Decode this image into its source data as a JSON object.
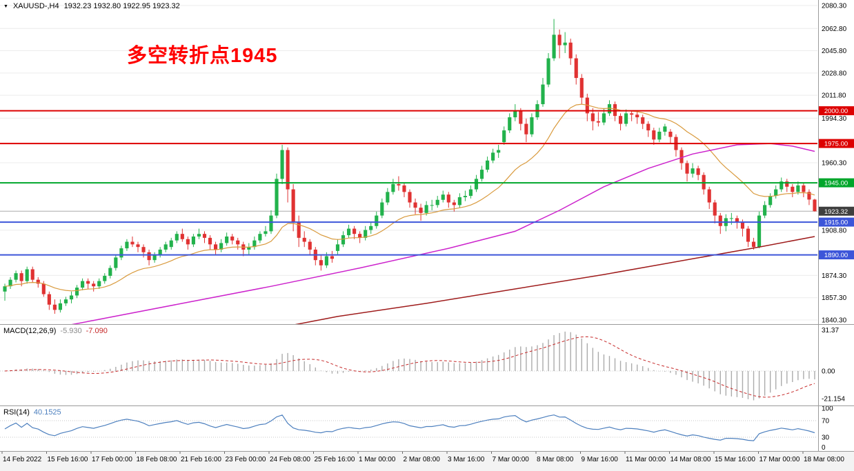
{
  "header": {
    "collapse_icon": "▼",
    "symbol": "XAUUSD-,H4",
    "ohlc": "1932.23 1932.80 1922.95 1923.32"
  },
  "annotation": {
    "text": "多空转折点1945",
    "color": "#ff0000"
  },
  "chart_data": {
    "type": "candlestick",
    "symbol": "XAUUSD-",
    "timeframe": "H4",
    "x_labels": [
      "14 Feb 2022",
      "15 Feb 16:00",
      "17 Feb 00:00",
      "18 Feb 08:00",
      "21 Feb 16:00",
      "23 Feb 00:00",
      "24 Feb 08:00",
      "25 Feb 16:00",
      "1 Mar 00:00",
      "2 Mar 08:00",
      "3 Mar 16:00",
      "7 Mar 00:00",
      "8 Mar 08:00",
      "9 Mar 16:00",
      "11 Mar 00:00",
      "14 Mar 08:00",
      "15 Mar 16:00",
      "17 Mar 00:00",
      "18 Mar 08:00"
    ],
    "main": {
      "price_range": [
        1840.3,
        2080.3
      ],
      "up_color": "#22b24c",
      "down_color": "#e03232",
      "price_ticks": [
        {
          "value": 2080.3,
          "label": "2080.30"
        },
        {
          "value": 2062.8,
          "label": "2062.80"
        },
        {
          "value": 2045.8,
          "label": "2045.80"
        },
        {
          "value": 2028.8,
          "label": "2028.80"
        },
        {
          "value": 2011.8,
          "label": "2011.80"
        },
        {
          "value": 1994.3,
          "label": "1994.30"
        },
        {
          "value": 1960.3,
          "label": "1960.30"
        },
        {
          "value": 1908.8,
          "label": "1908.80"
        },
        {
          "value": 1874.3,
          "label": "1874.30"
        },
        {
          "value": 1857.3,
          "label": "1857.30"
        },
        {
          "value": 1840.3,
          "label": "1840.30"
        }
      ],
      "levels": [
        {
          "price": 2000.0,
          "label": "2000.00",
          "color": "#dd0000"
        },
        {
          "price": 1975.0,
          "label": "1975.00",
          "color": "#dd0000"
        },
        {
          "price": 1945.0,
          "label": "1945.00",
          "color": "#00a62b"
        },
        {
          "price": 1915.0,
          "label": "1915.00",
          "color": "#3c55d9"
        },
        {
          "price": 1890.0,
          "label": "1890.00",
          "color": "#3c55d9"
        }
      ],
      "current_price": {
        "price": 1923.32,
        "label": "1923.32",
        "badge_color": "#3f3f3f",
        "line_color": "#aaaaaa"
      },
      "overlays": [
        {
          "name": "ma-fast-orange",
          "color": "#d99a3d",
          "type": "ema",
          "period": 20,
          "width": 1.2
        },
        {
          "name": "ma-mid-magenta",
          "color": "#cc22cc",
          "width": 1.5,
          "points": [
            [
              0,
              1827
            ],
            [
              16,
              1840
            ],
            [
              32,
              1853
            ],
            [
              48,
              1866
            ],
            [
              64,
              1880
            ],
            [
              80,
              1895
            ],
            [
              92,
              1908
            ],
            [
              100,
              1924
            ],
            [
              108,
              1942
            ],
            [
              116,
              1956
            ],
            [
              124,
              1967
            ],
            [
              132,
              1974
            ],
            [
              138,
              1975
            ],
            [
              142,
              1973
            ],
            [
              146,
              1969
            ]
          ]
        },
        {
          "name": "ma-slow-darkred",
          "color": "#9e1a1a",
          "width": 1.5,
          "points": [
            [
              44,
              1830
            ],
            [
              60,
              1843
            ],
            [
              76,
              1853
            ],
            [
              92,
              1864
            ],
            [
              108,
              1875
            ],
            [
              124,
              1887
            ],
            [
              136,
              1896
            ],
            [
              146,
              1904
            ]
          ]
        }
      ],
      "candles": [
        [
          1862,
          1868,
          1855,
          1866
        ],
        [
          1866,
          1873,
          1864,
          1871
        ],
        [
          1871,
          1878,
          1869,
          1876
        ],
        [
          1876,
          1878,
          1866,
          1870
        ],
        [
          1870,
          1881,
          1868,
          1879
        ],
        [
          1879,
          1881,
          1869,
          1871
        ],
        [
          1871,
          1873,
          1865,
          1868
        ],
        [
          1868,
          1870,
          1858,
          1860
        ],
        [
          1860,
          1862,
          1848,
          1852
        ],
        [
          1852,
          1856,
          1845,
          1848
        ],
        [
          1848,
          1856,
          1846,
          1853
        ],
        [
          1853,
          1858,
          1851,
          1856
        ],
        [
          1856,
          1862,
          1853,
          1859
        ],
        [
          1859,
          1867,
          1857,
          1865
        ],
        [
          1865,
          1872,
          1863,
          1870
        ],
        [
          1870,
          1872,
          1864,
          1868
        ],
        [
          1868,
          1870,
          1862,
          1866
        ],
        [
          1866,
          1872,
          1864,
          1870
        ],
        [
          1870,
          1876,
          1868,
          1874
        ],
        [
          1874,
          1882,
          1872,
          1880
        ],
        [
          1880,
          1890,
          1878,
          1888
        ],
        [
          1888,
          1897,
          1886,
          1895
        ],
        [
          1895,
          1902,
          1893,
          1900
        ],
        [
          1900,
          1904,
          1896,
          1898
        ],
        [
          1898,
          1900,
          1892,
          1896
        ],
        [
          1896,
          1898,
          1888,
          1892
        ],
        [
          1892,
          1894,
          1882,
          1886
        ],
        [
          1886,
          1892,
          1884,
          1890
        ],
        [
          1890,
          1896,
          1888,
          1894
        ],
        [
          1894,
          1900,
          1892,
          1898
        ],
        [
          1896,
          1903,
          1894,
          1901
        ],
        [
          1901,
          1908,
          1899,
          1906
        ],
        [
          1906,
          1910,
          1900,
          1902
        ],
        [
          1902,
          1904,
          1894,
          1898
        ],
        [
          1898,
          1906,
          1896,
          1904
        ],
        [
          1904,
          1910,
          1902,
          1906
        ],
        [
          1906,
          1908,
          1899,
          1903
        ],
        [
          1903,
          1905,
          1894,
          1898
        ],
        [
          1898,
          1900,
          1890,
          1894
        ],
        [
          1894,
          1902,
          1892,
          1899
        ],
        [
          1899,
          1907,
          1897,
          1904
        ],
        [
          1904,
          1906,
          1898,
          1901
        ],
        [
          1901,
          1903,
          1894,
          1898
        ],
        [
          1898,
          1900,
          1889,
          1894
        ],
        [
          1894,
          1899,
          1890,
          1896
        ],
        [
          1896,
          1904,
          1894,
          1901
        ],
        [
          1901,
          1908,
          1899,
          1906
        ],
        [
          1906,
          1912,
          1904,
          1908
        ],
        [
          1908,
          1924,
          1906,
          1920
        ],
        [
          1920,
          1952,
          1918,
          1948
        ],
        [
          1948,
          1974,
          1944,
          1970
        ],
        [
          1970,
          1972,
          1930,
          1940
        ],
        [
          1940,
          1944,
          1908,
          1915
        ],
        [
          1915,
          1920,
          1896,
          1903
        ],
        [
          1903,
          1908,
          1896,
          1900
        ],
        [
          1900,
          1902,
          1890,
          1894
        ],
        [
          1894,
          1896,
          1882,
          1886
        ],
        [
          1886,
          1890,
          1878,
          1882
        ],
        [
          1882,
          1892,
          1880,
          1889
        ],
        [
          1889,
          1893,
          1884,
          1887
        ],
        [
          1893,
          1902,
          1890,
          1898
        ],
        [
          1898,
          1908,
          1896,
          1905
        ],
        [
          1905,
          1913,
          1903,
          1910
        ],
        [
          1910,
          1912,
          1902,
          1906
        ],
        [
          1906,
          1908,
          1899,
          1903
        ],
        [
          1903,
          1912,
          1901,
          1909
        ],
        [
          1909,
          1915,
          1906,
          1912
        ],
        [
          1912,
          1923,
          1910,
          1920
        ],
        [
          1920,
          1933,
          1918,
          1930
        ],
        [
          1930,
          1941,
          1928,
          1938
        ],
        [
          1938,
          1948,
          1936,
          1944
        ],
        [
          1944,
          1950,
          1939,
          1943
        ],
        [
          1943,
          1945,
          1934,
          1938
        ],
        [
          1938,
          1940,
          1926,
          1930
        ],
        [
          1930,
          1933,
          1921,
          1926
        ],
        [
          1926,
          1929,
          1916,
          1922
        ],
        [
          1922,
          1931,
          1920,
          1928
        ],
        [
          1928,
          1932,
          1924,
          1928
        ],
        [
          1928,
          1935,
          1926,
          1932
        ],
        [
          1932,
          1939,
          1930,
          1936
        ],
        [
          1936,
          1938,
          1926,
          1930
        ],
        [
          1930,
          1932,
          1923,
          1928
        ],
        [
          1928,
          1937,
          1926,
          1934
        ],
        [
          1934,
          1939,
          1931,
          1935
        ],
        [
          1935,
          1943,
          1933,
          1940
        ],
        [
          1940,
          1951,
          1938,
          1948
        ],
        [
          1948,
          1958,
          1946,
          1955
        ],
        [
          1955,
          1965,
          1953,
          1962
        ],
        [
          1962,
          1971,
          1960,
          1968
        ],
        [
          1968,
          1974,
          1964,
          1970
        ],
        [
          1976,
          1988,
          1974,
          1985
        ],
        [
          1985,
          1998,
          1983,
          1995
        ],
        [
          1995,
          2005,
          1992,
          2000
        ],
        [
          2000,
          2002,
          1985,
          1990
        ],
        [
          1990,
          1994,
          1976,
          1982
        ],
        [
          1982,
          1998,
          1980,
          1995
        ],
        [
          1995,
          2008,
          1993,
          2005
        ],
        [
          2005,
          2025,
          2003,
          2020
        ],
        [
          2020,
          2044,
          2018,
          2040
        ],
        [
          2040,
          2070,
          2038,
          2058
        ],
        [
          2058,
          2062,
          2040,
          2050
        ],
        [
          2050,
          2060,
          2044,
          2052
        ],
        [
          2052,
          2055,
          2035,
          2040
        ],
        [
          2040,
          2043,
          2020,
          2025
        ],
        [
          2025,
          2028,
          2005,
          2010
        ],
        [
          2010,
          2013,
          1992,
          1998
        ],
        [
          1998,
          2002,
          1985,
          1992
        ],
        [
          1992,
          1999,
          1988,
          1991
        ],
        [
          1991,
          2002,
          1989,
          1998
        ],
        [
          1998,
          2008,
          1996,
          2005
        ],
        [
          2005,
          2007,
          1992,
          1996
        ],
        [
          1996,
          1998,
          1985,
          1990
        ],
        [
          1990,
          2001,
          1988,
          1998
        ],
        [
          1998,
          2000,
          1992,
          1997
        ],
        [
          1997,
          2000,
          1990,
          1995
        ],
        [
          1995,
          1997,
          1986,
          1990
        ],
        [
          1990,
          1992,
          1980,
          1985
        ],
        [
          1985,
          1987,
          1974,
          1978
        ],
        [
          1978,
          1987,
          1976,
          1984
        ],
        [
          1984,
          1990,
          1981,
          1988
        ],
        [
          1984,
          1986,
          1975,
          1980
        ],
        [
          1980,
          1982,
          1965,
          1970
        ],
        [
          1970,
          1972,
          1955,
          1960
        ],
        [
          1960,
          1962,
          1946,
          1952
        ],
        [
          1952,
          1960,
          1949,
          1956
        ],
        [
          1956,
          1958,
          1947,
          1951
        ],
        [
          1951,
          1953,
          1936,
          1940
        ],
        [
          1940,
          1942,
          1925,
          1930
        ],
        [
          1930,
          1932,
          1914,
          1920
        ],
        [
          1920,
          1922,
          1906,
          1912
        ],
        [
          1912,
          1921,
          1908,
          1918
        ],
        [
          1918,
          1922,
          1913,
          1918
        ],
        [
          1918,
          1920,
          1910,
          1915
        ],
        [
          1915,
          1917,
          1904,
          1910
        ],
        [
          1910,
          1912,
          1896,
          1900
        ],
        [
          1900,
          1903,
          1894,
          1896
        ],
        [
          1896,
          1923,
          1895,
          1920
        ],
        [
          1920,
          1931,
          1918,
          1928
        ],
        [
          1928,
          1937,
          1926,
          1935
        ],
        [
          1935,
          1943,
          1933,
          1940
        ],
        [
          1940,
          1949,
          1938,
          1946
        ],
        [
          1946,
          1948,
          1938,
          1942
        ],
        [
          1942,
          1944,
          1934,
          1938
        ],
        [
          1938,
          1946,
          1936,
          1943
        ],
        [
          1943,
          1945,
          1934,
          1938
        ],
        [
          1938,
          1940,
          1928,
          1932.2
        ],
        [
          1932.2,
          1932.8,
          1923,
          1923.3
        ]
      ]
    },
    "macd": {
      "label": "MACD(12,26,9)",
      "params": [
        12,
        26,
        9
      ],
      "main_value": "-5.930",
      "signal_value": "-7.090",
      "histogram_color": "#ababab",
      "signal_color": "#c62828",
      "ticks": [
        {
          "value": 31.37,
          "label": "31.37"
        },
        {
          "value": 0,
          "label": "0.00"
        },
        {
          "value": -21.154,
          "label": "-21.154"
        }
      ]
    },
    "rsi": {
      "label": "RSI(14)",
      "period": 14,
      "value": "40.1525",
      "line_color": "#4c7fbe",
      "levels": [
        70,
        30
      ],
      "ticks": [
        {
          "value": 100,
          "label": "100"
        },
        {
          "value": 70,
          "label": "70"
        },
        {
          "value": 30,
          "label": "30"
        },
        {
          "value": 0,
          "label": "0"
        }
      ]
    }
  }
}
